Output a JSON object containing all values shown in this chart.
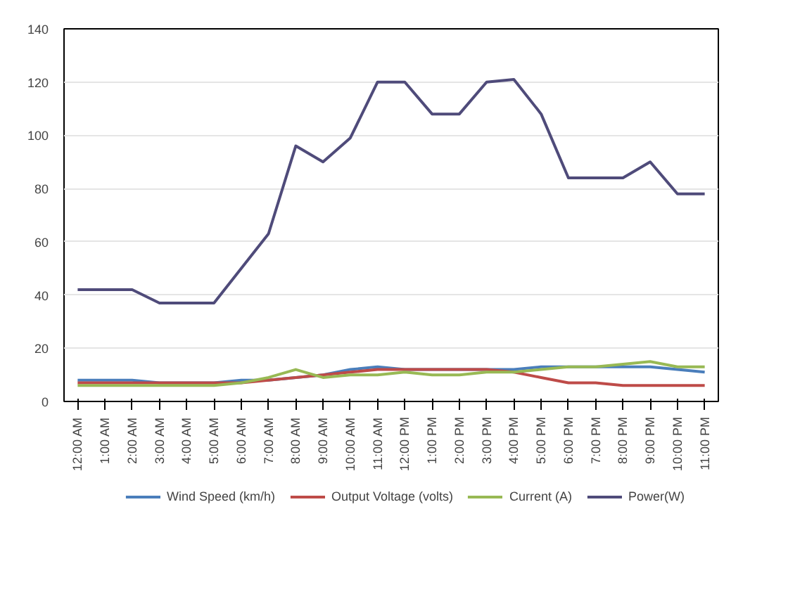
{
  "chart_data": {
    "type": "line",
    "categories": [
      "12:00 AM",
      "1:00 AM",
      "2:00 AM",
      "3:00 AM",
      "4:00 AM",
      "5:00 AM",
      "6:00 AM",
      "7:00 AM",
      "8:00 AM",
      "9:00 AM",
      "10:00 AM",
      "11:00 AM",
      "12:00 PM",
      "1:00 PM",
      "2:00 PM",
      "3:00 PM",
      "4:00 PM",
      "5:00 PM",
      "6:00 PM",
      "7:00 PM",
      "8:00 PM",
      "9:00 PM",
      "10:00 PM",
      "11:00 PM"
    ],
    "series": [
      {
        "name": "Wind Speed (km/h)",
        "color": "#4a7ebb",
        "values": [
          8,
          8,
          8,
          7,
          7,
          7,
          8,
          8,
          9,
          10,
          12,
          13,
          12,
          12,
          12,
          12,
          12,
          13,
          13,
          13,
          13,
          13,
          12,
          11
        ]
      },
      {
        "name": "Output Voltage (volts)",
        "color": "#be4b48",
        "values": [
          7,
          7,
          7,
          7,
          7,
          7,
          7,
          8,
          9,
          10,
          11,
          12,
          12,
          12,
          12,
          12,
          11,
          9,
          7,
          7,
          6,
          6,
          6,
          6
        ]
      },
      {
        "name": "Current (A)",
        "color": "#98b954",
        "values": [
          6,
          6,
          6,
          6,
          6,
          6,
          7,
          9,
          12,
          9,
          10,
          10,
          11,
          10,
          10,
          11,
          11,
          12,
          13,
          13,
          14,
          15,
          13,
          13
        ]
      },
      {
        "name": "Power(W)",
        "color": "#4f4b7a",
        "values": [
          42,
          42,
          42,
          37,
          37,
          37,
          50,
          63,
          96,
          90,
          99,
          120,
          120,
          108,
          108,
          120,
          121,
          108,
          84,
          84,
          84,
          90,
          78,
          78
        ]
      }
    ],
    "ylim": [
      0,
      140
    ],
    "yticks": [
      0,
      20,
      40,
      60,
      80,
      100,
      120,
      140
    ],
    "grid": "y",
    "legend": "bottom",
    "marker": "none",
    "line_style": "solid"
  }
}
